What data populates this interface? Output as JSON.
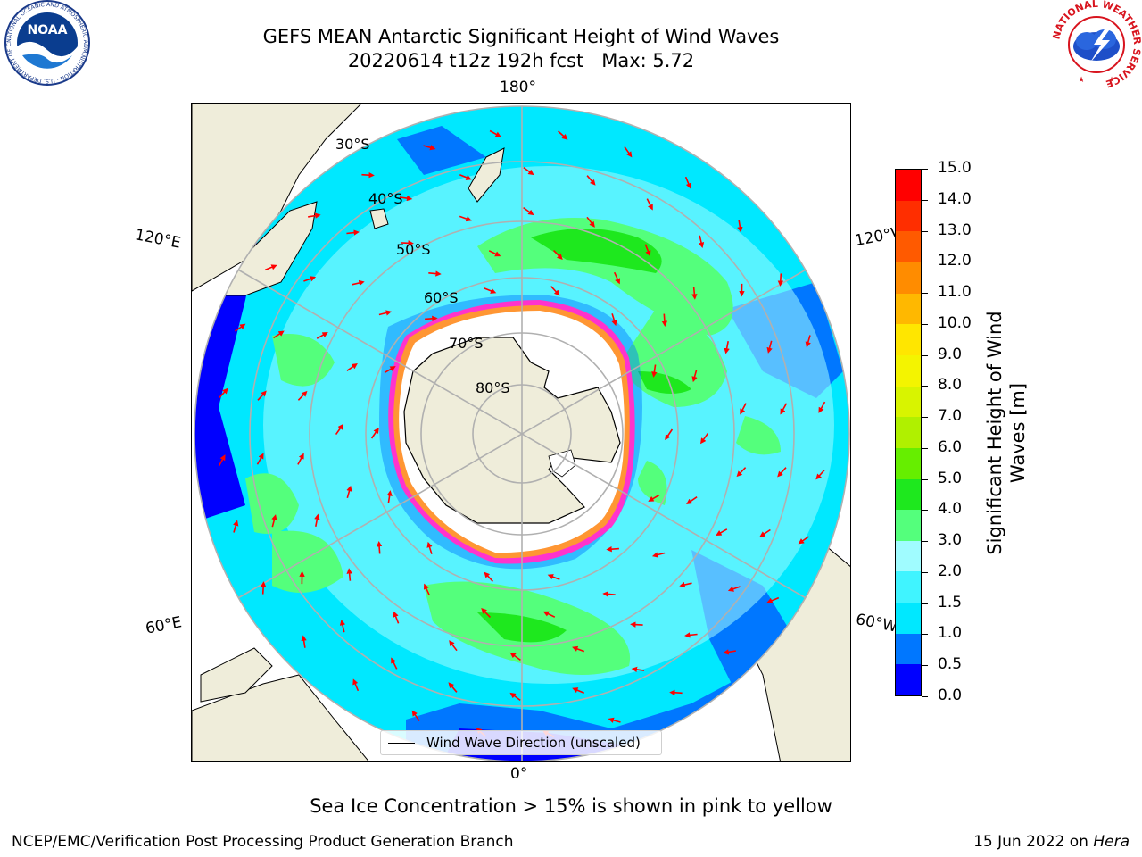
{
  "header": {
    "title_line1": "GEFS MEAN Antarctic Significant Height of Wind Waves",
    "title_line2": "20220614 t12z 192h fcst   Max: 5.72"
  },
  "logos": {
    "noaa": "NOAA",
    "noaa_ring": "NATIONAL OCEANIC AND ATMOSPHERIC ADMINISTRATION · U.S. DEPARTMENT OF COMMERCE",
    "nws_ring": "NATIONAL WEATHER SERVICE"
  },
  "map": {
    "projection": "south-polar-stereographic",
    "lon_labels": {
      "top": "180°",
      "bottom": "0°",
      "left_upper": "120°E",
      "left_lower": "60°E",
      "right_upper": "120°W",
      "right_lower": "60°W"
    },
    "lat_labels": [
      "30°S",
      "40°S",
      "50°S",
      "60°S",
      "70°S",
      "80°S"
    ],
    "legend": "Wind Wave Direction (unscaled)",
    "arrow_color": "#ff0000",
    "land_color": "#efedda",
    "sea_ice_color": "#ff33cc"
  },
  "colorbar": {
    "title": "Significant Height of Wind Waves [m]",
    "ticks": [
      "0.0",
      "0.5",
      "1.0",
      "1.5",
      "2.0",
      "3.0",
      "4.0",
      "5.0",
      "6.0",
      "7.0",
      "8.0",
      "9.0",
      "10.0",
      "11.0",
      "12.0",
      "13.0",
      "14.0",
      "15.0"
    ],
    "colors": [
      "#0000ff",
      "#0077ff",
      "#00e8ff",
      "#40f4ff",
      "#a0fcff",
      "#54ff7c",
      "#1ee81e",
      "#66ee00",
      "#b0f000",
      "#d8f400",
      "#f4f400",
      "#ffe600",
      "#ffb800",
      "#ff8c00",
      "#ff5a00",
      "#ff2e00",
      "#ff0000"
    ]
  },
  "caption": "Sea Ice Concentration > 15% is shown in pink to yellow",
  "footer": {
    "left": "NCEP/EMC/Verification Post Processing Product Generation Branch",
    "right_date": "15 Jun 2022 on ",
    "right_host": "Hera"
  }
}
